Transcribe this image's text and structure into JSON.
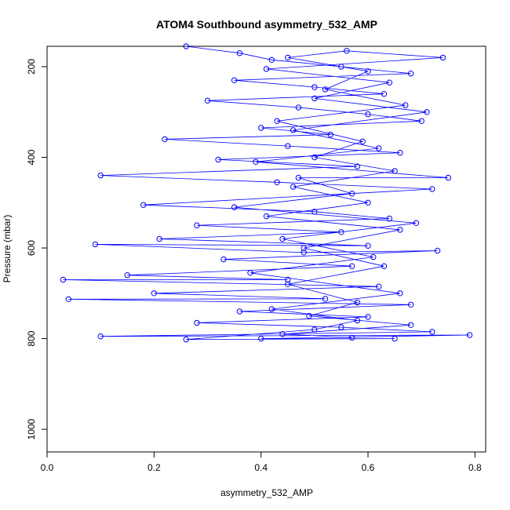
{
  "chart_data": {
    "type": "scatter",
    "title": "ATOM4 Southbound asymmetry_532_AMP",
    "xlabel": "asymmetry_532_AMP",
    "ylabel": "Pressure (mbar)",
    "xlim": [
      0,
      0.82
    ],
    "ylim": [
      1050,
      155
    ],
    "y_reversed": true,
    "x_ticks": [
      {
        "value": 0.0,
        "label": "0.0"
      },
      {
        "value": 0.2,
        "label": "0.2"
      },
      {
        "value": 0.4,
        "label": "0.4"
      },
      {
        "value": 0.6,
        "label": "0.6"
      },
      {
        "value": 0.8,
        "label": "0.8"
      }
    ],
    "y_ticks": [
      {
        "value": 200,
        "label": "200"
      },
      {
        "value": 400,
        "label": "400"
      },
      {
        "value": 600,
        "label": "600"
      },
      {
        "value": 800,
        "label": "800"
      },
      {
        "value": 1000,
        "label": "1000"
      }
    ],
    "grid": false,
    "legend": "none",
    "style": {
      "color": "#0000ff",
      "marker": "open-circle",
      "connected": true
    },
    "series": [
      {
        "points": [
          [
            0.26,
            155
          ],
          [
            0.36,
            170
          ],
          [
            0.42,
            185
          ],
          [
            0.55,
            200
          ],
          [
            0.68,
            215
          ],
          [
            0.35,
            230
          ],
          [
            0.5,
            245
          ],
          [
            0.63,
            260
          ],
          [
            0.3,
            275
          ],
          [
            0.47,
            290
          ],
          [
            0.6,
            305
          ],
          [
            0.7,
            320
          ],
          [
            0.4,
            335
          ],
          [
            0.53,
            350
          ],
          [
            0.22,
            360
          ],
          [
            0.45,
            375
          ],
          [
            0.66,
            390
          ],
          [
            0.32,
            405
          ],
          [
            0.58,
            420
          ],
          [
            0.1,
            440
          ],
          [
            0.43,
            455
          ],
          [
            0.72,
            470
          ],
          [
            0.18,
            505
          ],
          [
            0.5,
            520
          ],
          [
            0.64,
            535
          ],
          [
            0.28,
            550
          ],
          [
            0.55,
            565
          ],
          [
            0.21,
            580
          ],
          [
            0.6,
            595
          ],
          [
            0.09,
            592
          ],
          [
            0.48,
            610
          ],
          [
            0.73,
            606
          ],
          [
            0.33,
            625
          ],
          [
            0.57,
            640
          ],
          [
            0.15,
            660
          ],
          [
            0.45,
            670
          ],
          [
            0.03,
            670
          ],
          [
            0.62,
            685
          ],
          [
            0.2,
            700
          ],
          [
            0.52,
            712
          ],
          [
            0.04,
            713
          ],
          [
            0.68,
            725
          ],
          [
            0.36,
            740
          ],
          [
            0.6,
            752
          ],
          [
            0.28,
            765
          ],
          [
            0.55,
            775
          ],
          [
            0.72,
            785
          ],
          [
            0.1,
            795
          ],
          [
            0.79,
            792
          ],
          [
            0.4,
            800
          ],
          [
            0.65,
            800
          ],
          [
            0.26,
            802
          ],
          [
            0.5,
            780
          ],
          [
            0.58,
            760
          ],
          [
            0.42,
            735
          ],
          [
            0.66,
            700
          ],
          [
            0.38,
            655
          ],
          [
            0.61,
            620
          ],
          [
            0.44,
            580
          ],
          [
            0.69,
            545
          ],
          [
            0.35,
            510
          ],
          [
            0.57,
            480
          ],
          [
            0.47,
            445
          ],
          [
            0.75,
            445
          ],
          [
            0.39,
            410
          ],
          [
            0.62,
            380
          ],
          [
            0.46,
            340
          ],
          [
            0.71,
            300
          ],
          [
            0.5,
            270
          ],
          [
            0.64,
            235
          ],
          [
            0.41,
            205
          ],
          [
            0.74,
            180
          ],
          [
            0.56,
            165
          ],
          [
            0.45,
            180
          ],
          [
            0.6,
            210
          ],
          [
            0.52,
            250
          ],
          [
            0.67,
            285
          ],
          [
            0.43,
            320
          ],
          [
            0.59,
            365
          ],
          [
            0.5,
            400
          ],
          [
            0.65,
            430
          ],
          [
            0.46,
            465
          ],
          [
            0.6,
            500
          ],
          [
            0.41,
            530
          ],
          [
            0.66,
            560
          ],
          [
            0.48,
            600
          ],
          [
            0.63,
            640
          ],
          [
            0.45,
            680
          ],
          [
            0.58,
            720
          ],
          [
            0.49,
            750
          ],
          [
            0.68,
            770
          ],
          [
            0.44,
            790
          ],
          [
            0.57,
            798
          ]
        ]
      }
    ]
  }
}
